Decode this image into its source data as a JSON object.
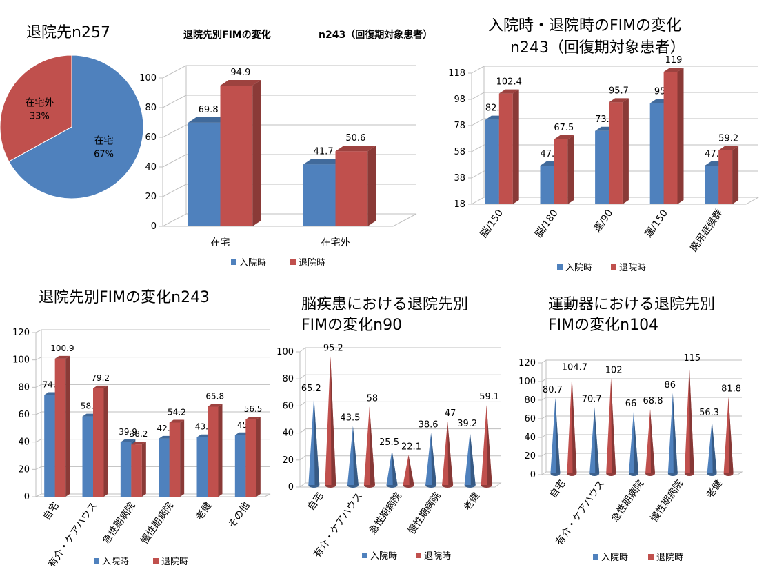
{
  "titles": {
    "pie": "退院先n257",
    "bar1_a": "退院先別FIMの変化",
    "bar1_b": "n243（回復期対象患者）",
    "bar2_line1": "入院時・退院時のFIMの変化",
    "bar2_line2": "n243（回復期対象患者）",
    "bar3": "退院先別FIMの変化n243",
    "cone1_line1": "脳疾患における退院先別",
    "cone1_line2": "FIMの変化n90",
    "cone2_line1": "運動器における退院先別",
    "cone2_line2": "FIMの変化n104"
  },
  "colors": {
    "admit": "#4f81bd",
    "discharge": "#c0504d"
  },
  "chart_data": [
    {
      "id": "pie",
      "type": "pie",
      "title": "退院先n257",
      "categories": [
        "在宅",
        "在宅外"
      ],
      "values": [
        67,
        33
      ],
      "labels": [
        "67%",
        "33%"
      ]
    },
    {
      "id": "bar1",
      "type": "bar",
      "title": "退院先別FIMの変化 n243（回復期対象患者）",
      "categories": [
        "在宅",
        "在宅外"
      ],
      "series": [
        {
          "name": "入院時",
          "values": [
            69.8,
            41.7
          ]
        },
        {
          "name": "退院時",
          "values": [
            94.9,
            50.6
          ]
        }
      ],
      "ylim": [
        0,
        100
      ],
      "yticks": [
        0,
        20,
        40,
        60,
        80,
        100
      ],
      "legend": "bottom"
    },
    {
      "id": "bar2",
      "type": "bar",
      "title": "入院時・退院時のFIMの変化 n243（回復期対象患者）",
      "categories": [
        "脳/150",
        "脳/180",
        "運/90",
        "運/150",
        "廃用症候群"
      ],
      "series": [
        {
          "name": "入院時",
          "values": [
            82.4,
            47.5,
            73.9,
            95,
            47.5
          ]
        },
        {
          "name": "退院時",
          "values": [
            102.4,
            67.5,
            95.7,
            119,
            59.2
          ]
        }
      ],
      "ylim": [
        18,
        118
      ],
      "yticks": [
        18,
        38,
        58,
        78,
        98,
        118
      ],
      "legend": "bottom"
    },
    {
      "id": "bar3",
      "type": "bar",
      "title": "退院先別FIMの変化n243",
      "categories": [
        "自宅",
        "有介・ケアハウス",
        "急性期病院",
        "慢性期病院",
        "老健",
        "その他"
      ],
      "series": [
        {
          "name": "入院時",
          "values": [
            74.4,
            58.7,
            39.9,
            42.4,
            43.5,
            45
          ]
        },
        {
          "name": "退院時",
          "values": [
            100.9,
            79.2,
            38.2,
            54.2,
            65.8,
            56.5
          ]
        }
      ],
      "ylim": [
        0,
        120
      ],
      "yticks": [
        0,
        20,
        40,
        60,
        80,
        100,
        120
      ],
      "legend": "bottom"
    },
    {
      "id": "cone1",
      "type": "bar",
      "title": "脳疾患における退院先別 FIMの変化n90",
      "categories": [
        "自宅",
        "有介・ケアハウス",
        "急性期病院",
        "慢性期病院",
        "老健"
      ],
      "series": [
        {
          "name": "入院時",
          "values": [
            65.2,
            43.5,
            25.5,
            38.6,
            39.2
          ]
        },
        {
          "name": "退院時",
          "values": [
            95.2,
            58,
            22.1,
            47,
            59.1
          ]
        }
      ],
      "ylim": [
        0,
        100
      ],
      "yticks": [
        0,
        20,
        40,
        60,
        80,
        100
      ],
      "legend": "bottom"
    },
    {
      "id": "cone2",
      "type": "bar",
      "title": "運動器における退院先別 FIMの変化n104",
      "categories": [
        "自宅",
        "有介・ケアハウス",
        "急性期病院",
        "慢性期病院",
        "老健"
      ],
      "series": [
        {
          "name": "入院時",
          "values": [
            80.7,
            70.7,
            66,
            86,
            56.3
          ]
        },
        {
          "name": "退院時",
          "values": [
            104.7,
            102,
            68.8,
            115,
            81.8
          ]
        }
      ],
      "ylim": [
        0,
        120
      ],
      "yticks": [
        0,
        20,
        40,
        60,
        80,
        100,
        120
      ],
      "legend": "bottom"
    }
  ]
}
